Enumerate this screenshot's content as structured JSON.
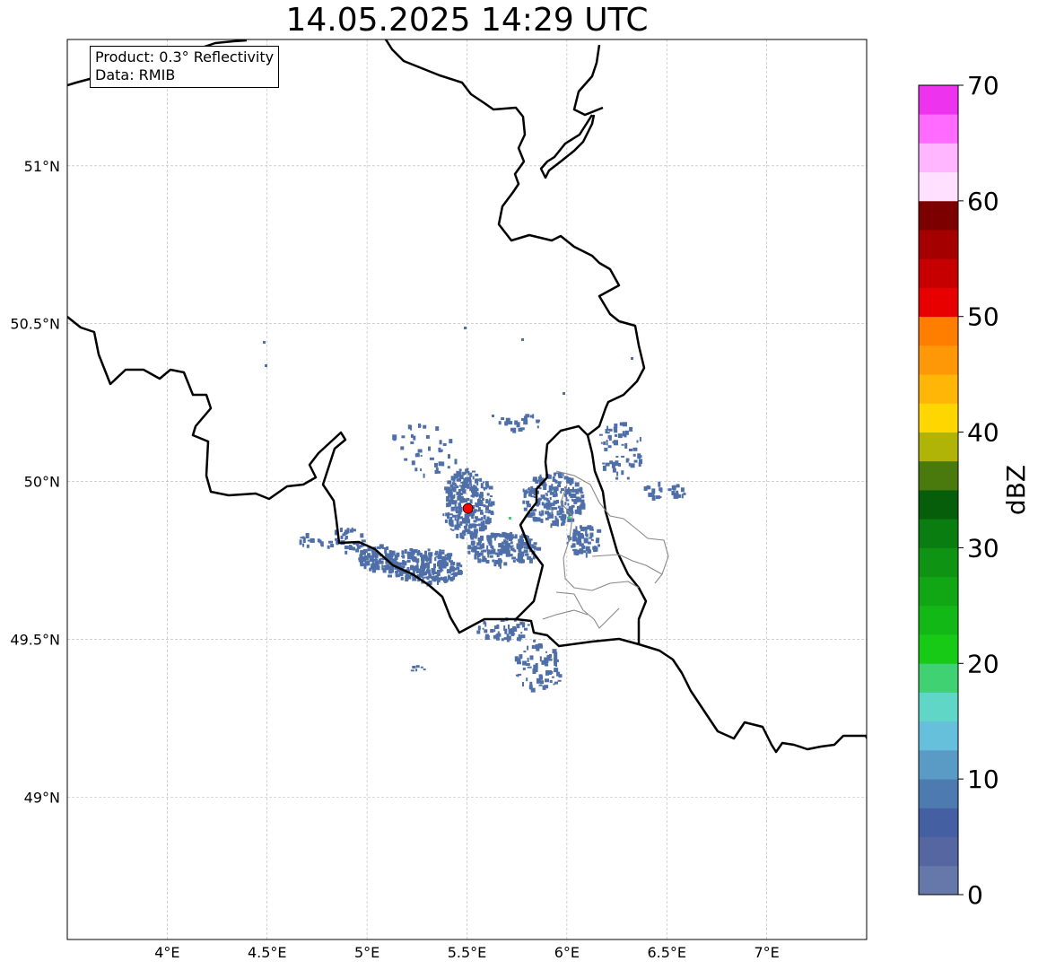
{
  "title": "14.05.2025 14:29 UTC",
  "info": {
    "product": "Product: 0.3° Reflectivity",
    "data": "Data: RMIB"
  },
  "map": {
    "lon_range": [
      3.5,
      7.5
    ],
    "lat_range": [
      48.55,
      51.4
    ],
    "lon_ticks": [
      {
        "value": 4.0,
        "label": "4°E"
      },
      {
        "value": 4.5,
        "label": "4.5°E"
      },
      {
        "value": 5.0,
        "label": "5°E"
      },
      {
        "value": 5.5,
        "label": "5.5°E"
      },
      {
        "value": 6.0,
        "label": "6°E"
      },
      {
        "value": 6.5,
        "label": "6.5°E"
      },
      {
        "value": 7.0,
        "label": "7°E"
      }
    ],
    "lat_ticks": [
      {
        "value": 51.0,
        "label": "51°N"
      },
      {
        "value": 50.5,
        "label": "50.5°N"
      },
      {
        "value": 50.0,
        "label": "50°N"
      },
      {
        "value": 49.5,
        "label": "49.5°N"
      },
      {
        "value": 49.0,
        "label": "49°N"
      }
    ],
    "gridlines": true,
    "radar_site": {
      "lon": 5.505,
      "lat": 49.915,
      "color": "#ff0000"
    },
    "echo_color": "#4f6fa8"
  },
  "colorbar": {
    "label": "dBZ",
    "min": 0,
    "max": 70,
    "tick_labels": [
      "0",
      "10",
      "20",
      "30",
      "40",
      "50",
      "60",
      "70"
    ],
    "colors": [
      "#6677aa",
      "#5566a0",
      "#4560a2",
      "#4d7bb0",
      "#5a9bc6",
      "#66c0dc",
      "#60d6c6",
      "#40d272",
      "#16ca16",
      "#12b816",
      "#10a614",
      "#0e9412",
      "#0a7d10",
      "#075e0a",
      "#4a7a0e",
      "#b0b406",
      "#ffd700",
      "#ffb606",
      "#ff9806",
      "#ff7e00",
      "#e60000",
      "#c60000",
      "#a40000",
      "#7c0000",
      "#ffe0ff",
      "#ffb6ff",
      "#ff6aff",
      "#ee33ee"
    ]
  }
}
